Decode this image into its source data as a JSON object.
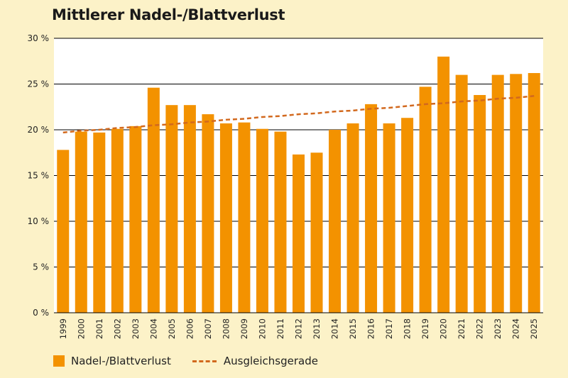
{
  "chart_data": {
    "type": "bar",
    "title": "Mittlerer Nadel-/Blattverlust",
    "categories": [
      "1999",
      "2000",
      "2001",
      "2002",
      "2003",
      "2004",
      "2005",
      "2006",
      "2007",
      "2008",
      "2009",
      "2010",
      "2011",
      "2012",
      "2013",
      "2014",
      "2015",
      "2016",
      "2017",
      "2018",
      "2019",
      "2020",
      "2021",
      "2022",
      "2023",
      "2024",
      "2025"
    ],
    "series": [
      {
        "name": "Nadel-/Blattverlust",
        "type": "bar",
        "color": "#f39200",
        "values": [
          17.8,
          19.8,
          19.7,
          20.1,
          20.4,
          24.6,
          22.7,
          22.7,
          21.7,
          20.7,
          20.8,
          20.1,
          19.8,
          17.3,
          17.5,
          20.0,
          20.7,
          22.8,
          20.7,
          21.3,
          24.7,
          28.0,
          26.0,
          23.8,
          26.0,
          26.1,
          26.2
        ]
      },
      {
        "name": "Ausgleichsgerade",
        "type": "line",
        "style": "dashed",
        "color": "#d2691e",
        "values": [
          19.7,
          19.9,
          20.0,
          20.2,
          20.3,
          20.5,
          20.6,
          20.8,
          20.9,
          21.1,
          21.2,
          21.4,
          21.5,
          21.7,
          21.8,
          22.0,
          22.1,
          22.3,
          22.4,
          22.6,
          22.8,
          22.9,
          23.1,
          23.2,
          23.4,
          23.5,
          23.7
        ]
      }
    ],
    "ylim": [
      0,
      30
    ],
    "yticks": [
      0,
      5,
      10,
      15,
      20,
      25,
      30
    ],
    "ytick_labels": [
      "0 %",
      "5 %",
      "10 %",
      "15 %",
      "20 %",
      "25 %",
      "30 %"
    ],
    "xlabel": "",
    "ylabel": "",
    "grid": true,
    "legend_position": "bottom-left",
    "colors": {
      "background": "#fcf2c8",
      "plot_background": "#ffffff",
      "grid": "#000000"
    }
  }
}
